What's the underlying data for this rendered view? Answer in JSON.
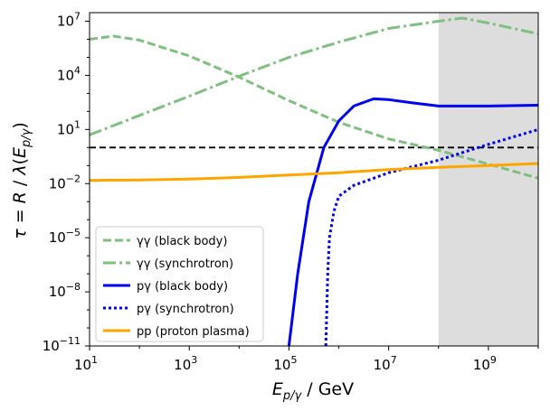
{
  "chart_data": {
    "type": "line",
    "log_x": true,
    "log_y": true,
    "xlim": [
      10,
      10000000000.0
    ],
    "ylim": [
      1e-11,
      30000000.0
    ],
    "xlabel": "E_{p/γ} / GeV",
    "ylabel": "τ = R / λ(E_{p/γ})",
    "x_ticks": [
      {
        "value": 10,
        "mantissa": "10",
        "exp": "1"
      },
      {
        "value": 1000,
        "mantissa": "10",
        "exp": "3"
      },
      {
        "value": 100000,
        "mantissa": "10",
        "exp": "5"
      },
      {
        "value": 10000000,
        "mantissa": "10",
        "exp": "7"
      },
      {
        "value": 1000000000,
        "mantissa": "10",
        "exp": "9"
      }
    ],
    "y_ticks": [
      {
        "value": 1e-11,
        "mantissa": "10",
        "exp": "−11"
      },
      {
        "value": 1e-08,
        "mantissa": "10",
        "exp": "−8"
      },
      {
        "value": 1e-05,
        "mantissa": "10",
        "exp": "−5"
      },
      {
        "value": 0.01,
        "mantissa": "10",
        "exp": "−2"
      },
      {
        "value": 10,
        "mantissa": "10",
        "exp": "1"
      },
      {
        "value": 10000,
        "mantissa": "10",
        "exp": "4"
      },
      {
        "value": 10000000,
        "mantissa": "10",
        "exp": "7"
      }
    ],
    "shaded_region": {
      "x": [
        100000000.0,
        10000000000.0
      ],
      "color": "#dddddd"
    },
    "threshold_line": {
      "y": 1,
      "color": "#000000",
      "style": "dashed"
    },
    "series": [
      {
        "name": "γγ (black body)",
        "color": "#7fbf7f",
        "style": "dashed",
        "x": [
          10,
          30,
          100,
          1000,
          10000,
          100000,
          1000000,
          10000000,
          100000000,
          1000000000,
          10000000000
        ],
        "y": [
          1000000.0,
          1500000.0,
          900000.0,
          120000.0,
          8000,
          400,
          25,
          3,
          0.7,
          0.12,
          0.02
        ]
      },
      {
        "name": "γγ (synchrotron)",
        "color": "#7fbf7f",
        "style": "dashdot",
        "x": [
          10,
          100,
          1000,
          10000,
          100000,
          1000000,
          10000000,
          100000000,
          300000000,
          1000000000,
          10000000000
        ],
        "y": [
          5,
          60,
          700,
          9000,
          100000,
          700000,
          4000000,
          10000000.0,
          15000000.0,
          8000000.0,
          2000000.0
        ]
      },
      {
        "name": "pγ (black body)",
        "color": "#0000ee",
        "style": "solid",
        "x": [
          100000,
          150000,
          250000,
          500000,
          1000000,
          2000000,
          5000000,
          10000000,
          30000000,
          100000000,
          1000000000,
          10000000000
        ],
        "y": [
          1e-11,
          1e-07,
          0.001,
          1,
          30,
          200,
          500,
          450,
          300,
          200,
          200,
          220
        ]
      },
      {
        "name": "pγ (synchrotron)",
        "color": "#0000ee",
        "style": "dotted",
        "x": [
          550000,
          600000,
          650000,
          800000,
          1000000,
          2000000,
          5000000,
          10000000,
          100000000,
          1000000000,
          10000000000
        ],
        "y": [
          1e-11,
          1e-07,
          1e-05,
          0.0003,
          0.002,
          0.008,
          0.02,
          0.04,
          0.2,
          1.5,
          10
        ]
      },
      {
        "name": "pp (proton plasma)",
        "color": "#ffa500",
        "style": "solid",
        "x": [
          10,
          100,
          1000,
          10000,
          100000,
          1000000,
          10000000,
          100000000,
          1000000000,
          10000000000
        ],
        "y": [
          0.015,
          0.016,
          0.018,
          0.022,
          0.03,
          0.04,
          0.06,
          0.08,
          0.1,
          0.13
        ]
      }
    ]
  }
}
